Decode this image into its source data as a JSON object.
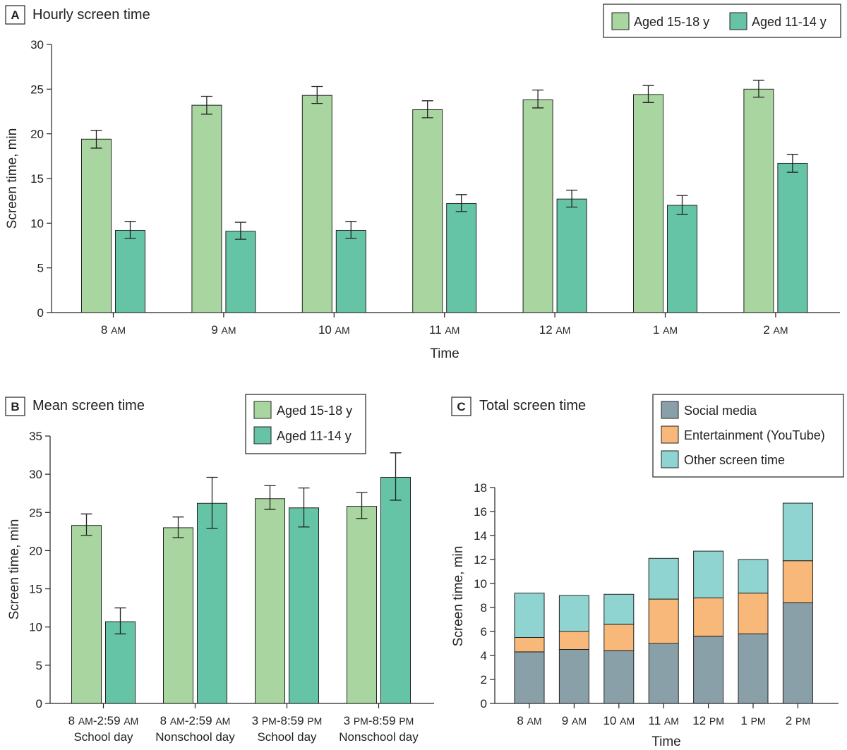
{
  "chart_data": [
    {
      "panel": "A",
      "title": "Hourly screen time",
      "type": "bar",
      "xlabel": "Time",
      "ylabel": "Screen time, min",
      "ylim": [
        0,
        30
      ],
      "yticks": [
        0,
        5,
        10,
        15,
        20,
        25,
        30
      ],
      "categories": [
        {
          "main": "8",
          "small": "AM"
        },
        {
          "main": "9",
          "small": "AM"
        },
        {
          "main": "10",
          "small": "AM"
        },
        {
          "main": "11",
          "small": "AM"
        },
        {
          "main": "12",
          "small": "AM"
        },
        {
          "main": "1",
          "small": "AM"
        },
        {
          "main": "2",
          "small": "AM"
        }
      ],
      "legend_position": "top-right",
      "series": [
        {
          "name": "Aged 15-18 y",
          "color": "#a9d6a0",
          "values": [
            19.4,
            23.2,
            24.3,
            22.7,
            23.8,
            24.4,
            25.0
          ],
          "err_low": [
            18.4,
            22.2,
            23.4,
            21.8,
            22.9,
            23.5,
            24.1
          ],
          "err_high": [
            20.4,
            24.2,
            25.3,
            23.7,
            24.9,
            25.4,
            26.0
          ]
        },
        {
          "name": "Aged 11-14 y",
          "color": "#66c4a6",
          "values": [
            9.2,
            9.1,
            9.2,
            12.2,
            12.7,
            12.0,
            16.7
          ],
          "err_low": [
            8.3,
            8.2,
            8.3,
            11.3,
            11.8,
            11.0,
            15.7
          ],
          "err_high": [
            10.2,
            10.1,
            10.2,
            13.2,
            13.7,
            13.1,
            17.7
          ]
        }
      ]
    },
    {
      "panel": "B",
      "title": "Mean screen time",
      "type": "bar",
      "xlabel": "",
      "ylabel": "Screen time, min",
      "ylim": [
        0,
        35
      ],
      "yticks": [
        0,
        5,
        10,
        15,
        20,
        25,
        30,
        35
      ],
      "categories": [
        {
          "l1a": "8 ",
          "l1b": "AM",
          "l1c": "-2:59 ",
          "l1d": "AM",
          "l2": "School day"
        },
        {
          "l1a": "8 ",
          "l1b": "AM",
          "l1c": "-2:59 ",
          "l1d": "AM",
          "l2": "Nonschool day"
        },
        {
          "l1a": "3 ",
          "l1b": "PM",
          "l1c": "-8:59 ",
          "l1d": "PM",
          "l2": "School day"
        },
        {
          "l1a": "3 ",
          "l1b": "PM",
          "l1c": "-8:59 ",
          "l1d": "PM",
          "l2": "Nonschool day"
        }
      ],
      "legend_position": "top-right",
      "series": [
        {
          "name": "Aged 15-18 y",
          "color": "#a9d6a0",
          "values": [
            23.3,
            23.0,
            26.8,
            25.8
          ],
          "err_low": [
            22.0,
            21.7,
            25.4,
            24.2
          ],
          "err_high": [
            24.8,
            24.4,
            28.5,
            27.6
          ]
        },
        {
          "name": "Aged 11-14 y",
          "color": "#66c4a6",
          "values": [
            10.7,
            26.2,
            25.6,
            29.6
          ],
          "err_low": [
            9.1,
            22.9,
            23.1,
            26.6
          ],
          "err_high": [
            12.5,
            29.6,
            28.2,
            32.8
          ]
        }
      ]
    },
    {
      "panel": "C",
      "title": "Total screen time",
      "type": "stacked-bar",
      "xlabel": "Time",
      "ylabel": "Screen time, min",
      "ylim": [
        0,
        18
      ],
      "yticks": [
        0,
        2,
        4,
        6,
        8,
        10,
        12,
        14,
        16,
        18
      ],
      "categories": [
        {
          "main": "8",
          "small": "AM"
        },
        {
          "main": "9",
          "small": "AM"
        },
        {
          "main": "10",
          "small": "AM"
        },
        {
          "main": "11",
          "small": "AM"
        },
        {
          "main": "12",
          "small": "PM"
        },
        {
          "main": "1",
          "small": "PM"
        },
        {
          "main": "2",
          "small": "PM"
        }
      ],
      "legend_position": "top-right",
      "series": [
        {
          "name": "Social media",
          "color": "#8aa0a9",
          "values": [
            4.3,
            4.5,
            4.4,
            5.0,
            5.6,
            5.8,
            8.4
          ]
        },
        {
          "name": "Entertainment (YouTube)",
          "color": "#f7b87a",
          "values": [
            1.2,
            1.5,
            2.2,
            3.7,
            3.2,
            3.4,
            3.5
          ]
        },
        {
          "name": "Other screen time",
          "color": "#8fd4d0",
          "values": [
            3.7,
            3.0,
            2.5,
            3.4,
            3.9,
            2.8,
            4.8
          ]
        }
      ]
    }
  ]
}
